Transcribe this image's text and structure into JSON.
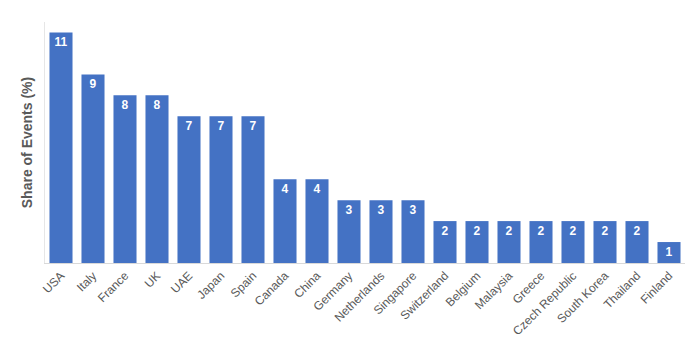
{
  "chart_data": {
    "type": "bar",
    "y_label": "Share of Events (%)",
    "categories": [
      "USA",
      "Italy",
      "France",
      "UK",
      "UAE",
      "Japan",
      "Spain",
      "Canada",
      "China",
      "Germany",
      "Netherlands",
      "Singapore",
      "Switzerland",
      "Belgium",
      "Malaysia",
      "Greece",
      "Czech Republic",
      "South Korea",
      "Thailand",
      "Finland"
    ],
    "values": [
      11,
      9,
      8,
      8,
      7,
      7,
      7,
      4,
      4,
      3,
      3,
      3,
      2,
      2,
      2,
      2,
      2,
      2,
      2,
      1
    ],
    "color": "#4472c4",
    "ylim": [
      0,
      11.5
    ],
    "grid": false,
    "data_labels": true,
    "tick_labels": "x"
  }
}
